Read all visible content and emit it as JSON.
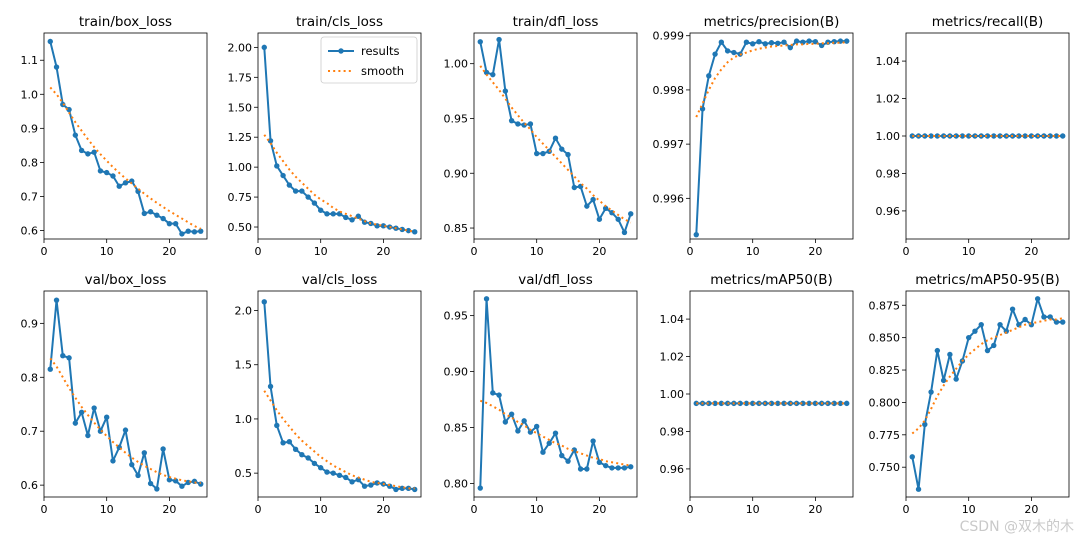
{
  "legend": {
    "results": "results",
    "smooth": "smooth"
  },
  "colors": {
    "results": "#1f77b4",
    "smooth": "#ff7f0e",
    "frame": "#000000"
  },
  "watermark": "CSDN @双木的木",
  "chart_data": [
    {
      "type": "line",
      "title": "train/box_loss",
      "xlim": [
        0,
        26
      ],
      "ylim": [
        0.575,
        1.18
      ],
      "xticks": [
        0,
        10,
        20
      ],
      "yticks": [
        0.6,
        0.7,
        0.8,
        0.9,
        1.0,
        1.1
      ],
      "ydec": 1,
      "legend": false,
      "x": [
        1,
        2,
        3,
        4,
        5,
        6,
        7,
        8,
        9,
        10,
        11,
        12,
        13,
        14,
        15,
        16,
        17,
        18,
        19,
        20,
        21,
        22,
        23,
        24,
        25
      ],
      "series": [
        {
          "name": "results",
          "values": [
            1.155,
            1.08,
            0.97,
            0.955,
            0.88,
            0.835,
            0.825,
            0.83,
            0.775,
            0.77,
            0.76,
            0.73,
            0.74,
            0.745,
            0.715,
            0.65,
            0.655,
            0.645,
            0.635,
            0.62,
            0.62,
            0.59,
            0.598,
            0.596,
            0.598
          ]
        },
        {
          "name": "smooth",
          "values": [
            1.02,
            1.0,
            0.975,
            0.946,
            0.918,
            0.893,
            0.868,
            0.845,
            0.824,
            0.805,
            0.786,
            0.769,
            0.753,
            0.738,
            0.723,
            0.708,
            0.694,
            0.681,
            0.669,
            0.657,
            0.646,
            0.635,
            0.624,
            0.613,
            0.605
          ]
        }
      ]
    },
    {
      "type": "line",
      "title": "train/cls_loss",
      "xlim": [
        0,
        26
      ],
      "ylim": [
        0.4,
        2.12
      ],
      "xticks": [
        0,
        10,
        20
      ],
      "yticks": [
        0.5,
        0.75,
        1.0,
        1.25,
        1.5,
        1.75,
        2.0
      ],
      "ydec": 2,
      "legend": true,
      "x": [
        1,
        2,
        3,
        4,
        5,
        6,
        7,
        8,
        9,
        10,
        11,
        12,
        13,
        14,
        15,
        16,
        17,
        18,
        19,
        20,
        21,
        22,
        23,
        24,
        25
      ],
      "series": [
        {
          "name": "results",
          "values": [
            2.0,
            1.22,
            1.01,
            0.93,
            0.85,
            0.8,
            0.8,
            0.75,
            0.7,
            0.64,
            0.61,
            0.61,
            0.61,
            0.58,
            0.56,
            0.59,
            0.54,
            0.53,
            0.51,
            0.51,
            0.5,
            0.49,
            0.48,
            0.47,
            0.46
          ]
        },
        {
          "name": "smooth",
          "values": [
            1.27,
            1.2,
            1.12,
            1.05,
            0.98,
            0.92,
            0.87,
            0.82,
            0.77,
            0.73,
            0.7,
            0.66,
            0.63,
            0.61,
            0.59,
            0.57,
            0.55,
            0.53,
            0.52,
            0.51,
            0.5,
            0.49,
            0.48,
            0.47,
            0.46
          ]
        }
      ]
    },
    {
      "type": "line",
      "title": "train/dfl_loss",
      "xlim": [
        0,
        26
      ],
      "ylim": [
        0.84,
        1.028
      ],
      "xticks": [
        0,
        10,
        20
      ],
      "yticks": [
        0.85,
        0.9,
        0.95,
        1.0
      ],
      "ydec": 2,
      "legend": false,
      "x": [
        1,
        2,
        3,
        4,
        5,
        6,
        7,
        8,
        9,
        10,
        11,
        12,
        13,
        14,
        15,
        16,
        17,
        18,
        19,
        20,
        21,
        22,
        23,
        24,
        25
      ],
      "series": [
        {
          "name": "results",
          "values": [
            1.02,
            0.992,
            0.99,
            1.022,
            0.975,
            0.948,
            0.945,
            0.944,
            0.945,
            0.918,
            0.918,
            0.92,
            0.932,
            0.922,
            0.917,
            0.887,
            0.888,
            0.87,
            0.876,
            0.858,
            0.868,
            0.864,
            0.858,
            0.846,
            0.863
          ]
        },
        {
          "name": "smooth",
          "values": [
            0.998,
            0.99,
            0.983,
            0.976,
            0.968,
            0.96,
            0.953,
            0.946,
            0.94,
            0.933,
            0.927,
            0.921,
            0.915,
            0.909,
            0.903,
            0.897,
            0.891,
            0.886,
            0.88,
            0.875,
            0.87,
            0.866,
            0.862,
            0.858,
            0.855
          ]
        }
      ]
    },
    {
      "type": "line",
      "title": "metrics/precision(B)",
      "xlim": [
        0,
        26
      ],
      "ylim": [
        0.99525,
        0.99905
      ],
      "xticks": [
        0,
        10,
        20
      ],
      "yticks": [
        0.996,
        0.997,
        0.998,
        0.999
      ],
      "ydec": 3,
      "legend": false,
      "x": [
        1,
        2,
        3,
        4,
        5,
        6,
        7,
        8,
        9,
        10,
        11,
        12,
        13,
        14,
        15,
        16,
        17,
        18,
        19,
        20,
        21,
        22,
        23,
        24,
        25
      ],
      "series": [
        {
          "name": "results",
          "values": [
            0.99533,
            0.99765,
            0.99826,
            0.99866,
            0.99888,
            0.99872,
            0.99869,
            0.99866,
            0.99888,
            0.99885,
            0.99889,
            0.99885,
            0.99887,
            0.99886,
            0.99888,
            0.99878,
            0.9989,
            0.99888,
            0.9989,
            0.99889,
            0.99882,
            0.99888,
            0.99889,
            0.9989,
            0.9989
          ]
        },
        {
          "name": "smooth",
          "values": [
            0.9975,
            0.99775,
            0.998,
            0.99822,
            0.99838,
            0.99851,
            0.9986,
            0.99865,
            0.99869,
            0.99873,
            0.99876,
            0.99878,
            0.9988,
            0.99881,
            0.99882,
            0.99883,
            0.99884,
            0.99884,
            0.99885,
            0.99885,
            0.99886,
            0.99886,
            0.99887,
            0.99887,
            0.99888
          ]
        }
      ]
    },
    {
      "type": "line",
      "title": "metrics/recall(B)",
      "xlim": [
        0,
        26
      ],
      "ylim": [
        0.945,
        1.055
      ],
      "xticks": [
        0,
        10,
        20
      ],
      "yticks": [
        0.96,
        0.98,
        1.0,
        1.02,
        1.04
      ],
      "ydec": 2,
      "legend": false,
      "x": [
        1,
        2,
        3,
        4,
        5,
        6,
        7,
        8,
        9,
        10,
        11,
        12,
        13,
        14,
        15,
        16,
        17,
        18,
        19,
        20,
        21,
        22,
        23,
        24,
        25
      ],
      "series": [
        {
          "name": "results",
          "values": [
            1,
            1,
            1,
            1,
            1,
            1,
            1,
            1,
            1,
            1,
            1,
            1,
            1,
            1,
            1,
            1,
            1,
            1,
            1,
            1,
            1,
            1,
            1,
            1,
            1
          ]
        },
        {
          "name": "smooth",
          "values": [
            1,
            1,
            1,
            1,
            1,
            1,
            1,
            1,
            1,
            1,
            1,
            1,
            1,
            1,
            1,
            1,
            1,
            1,
            1,
            1,
            1,
            1,
            1,
            1,
            1
          ]
        }
      ]
    },
    {
      "type": "line",
      "title": "val/box_loss",
      "xlim": [
        0,
        26
      ],
      "ylim": [
        0.578,
        0.96
      ],
      "xticks": [
        0,
        10,
        20
      ],
      "yticks": [
        0.6,
        0.7,
        0.8,
        0.9
      ],
      "ydec": 1,
      "legend": false,
      "x": [
        1,
        2,
        3,
        4,
        5,
        6,
        7,
        8,
        9,
        10,
        11,
        12,
        13,
        14,
        15,
        16,
        17,
        18,
        19,
        20,
        21,
        22,
        23,
        24,
        25
      ],
      "series": [
        {
          "name": "results",
          "values": [
            0.815,
            0.943,
            0.84,
            0.836,
            0.715,
            0.735,
            0.692,
            0.743,
            0.7,
            0.726,
            0.645,
            0.67,
            0.702,
            0.638,
            0.618,
            0.66,
            0.603,
            0.593,
            0.667,
            0.61,
            0.608,
            0.598,
            0.605,
            0.607,
            0.602
          ]
        },
        {
          "name": "smooth",
          "values": [
            0.835,
            0.82,
            0.8,
            0.78,
            0.762,
            0.745,
            0.73,
            0.716,
            0.703,
            0.691,
            0.68,
            0.67,
            0.66,
            0.651,
            0.643,
            0.636,
            0.63,
            0.624,
            0.619,
            0.615,
            0.612,
            0.609,
            0.607,
            0.605,
            0.604
          ]
        }
      ]
    },
    {
      "type": "line",
      "title": "val/cls_loss",
      "xlim": [
        0,
        26
      ],
      "ylim": [
        0.28,
        2.18
      ],
      "xticks": [
        0,
        10,
        20
      ],
      "yticks": [
        0.5,
        1.0,
        1.5,
        2.0
      ],
      "ydec": 1,
      "legend": false,
      "x": [
        1,
        2,
        3,
        4,
        5,
        6,
        7,
        8,
        9,
        10,
        11,
        12,
        13,
        14,
        15,
        16,
        17,
        18,
        19,
        20,
        21,
        22,
        23,
        24,
        25
      ],
      "series": [
        {
          "name": "results",
          "values": [
            2.08,
            1.3,
            0.94,
            0.78,
            0.79,
            0.72,
            0.67,
            0.64,
            0.59,
            0.55,
            0.51,
            0.5,
            0.48,
            0.46,
            0.42,
            0.44,
            0.38,
            0.39,
            0.41,
            0.4,
            0.38,
            0.35,
            0.36,
            0.36,
            0.35
          ]
        },
        {
          "name": "smooth",
          "values": [
            1.26,
            1.17,
            1.08,
            1.0,
            0.93,
            0.86,
            0.8,
            0.75,
            0.7,
            0.65,
            0.61,
            0.57,
            0.54,
            0.51,
            0.48,
            0.46,
            0.44,
            0.42,
            0.41,
            0.4,
            0.39,
            0.38,
            0.37,
            0.36,
            0.36
          ]
        }
      ]
    },
    {
      "type": "line",
      "title": "val/dfl_loss",
      "xlim": [
        0,
        26
      ],
      "ylim": [
        0.788,
        0.972
      ],
      "xticks": [
        0,
        10,
        20
      ],
      "yticks": [
        0.8,
        0.85,
        0.9,
        0.95
      ],
      "ydec": 2,
      "legend": false,
      "x": [
        1,
        2,
        3,
        4,
        5,
        6,
        7,
        8,
        9,
        10,
        11,
        12,
        13,
        14,
        15,
        16,
        17,
        18,
        19,
        20,
        21,
        22,
        23,
        24,
        25
      ],
      "series": [
        {
          "name": "results",
          "values": [
            0.796,
            0.965,
            0.881,
            0.879,
            0.855,
            0.862,
            0.847,
            0.856,
            0.846,
            0.851,
            0.828,
            0.836,
            0.845,
            0.825,
            0.82,
            0.83,
            0.813,
            0.813,
            0.838,
            0.819,
            0.816,
            0.814,
            0.814,
            0.814,
            0.815
          ]
        },
        {
          "name": "smooth",
          "values": [
            0.874,
            0.872,
            0.869,
            0.866,
            0.862,
            0.859,
            0.855,
            0.852,
            0.848,
            0.845,
            0.842,
            0.839,
            0.836,
            0.834,
            0.831,
            0.829,
            0.827,
            0.825,
            0.823,
            0.822,
            0.82,
            0.819,
            0.818,
            0.817,
            0.816
          ]
        }
      ]
    },
    {
      "type": "line",
      "title": "metrics/mAP50(B)",
      "xlim": [
        0,
        26
      ],
      "ylim": [
        0.945,
        1.055
      ],
      "xticks": [
        0,
        10,
        20
      ],
      "yticks": [
        0.96,
        0.98,
        1.0,
        1.02,
        1.04
      ],
      "ydec": 2,
      "legend": false,
      "x": [
        1,
        2,
        3,
        4,
        5,
        6,
        7,
        8,
        9,
        10,
        11,
        12,
        13,
        14,
        15,
        16,
        17,
        18,
        19,
        20,
        21,
        22,
        23,
        24,
        25
      ],
      "series": [
        {
          "name": "results",
          "values": [
            0.995,
            0.995,
            0.995,
            0.995,
            0.995,
            0.995,
            0.995,
            0.995,
            0.995,
            0.995,
            0.995,
            0.995,
            0.995,
            0.995,
            0.995,
            0.995,
            0.995,
            0.995,
            0.995,
            0.995,
            0.995,
            0.995,
            0.995,
            0.995,
            0.995
          ]
        },
        {
          "name": "smooth",
          "values": [
            0.995,
            0.995,
            0.995,
            0.995,
            0.995,
            0.995,
            0.995,
            0.995,
            0.995,
            0.995,
            0.995,
            0.995,
            0.995,
            0.995,
            0.995,
            0.995,
            0.995,
            0.995,
            0.995,
            0.995,
            0.995,
            0.995,
            0.995,
            0.995,
            0.995
          ]
        }
      ]
    },
    {
      "type": "line",
      "title": "metrics/mAP50-95(B)",
      "xlim": [
        0,
        26
      ],
      "ylim": [
        0.727,
        0.886
      ],
      "xticks": [
        0,
        10,
        20
      ],
      "yticks": [
        0.75,
        0.775,
        0.8,
        0.825,
        0.85,
        0.875
      ],
      "ydec": 3,
      "legend": false,
      "x": [
        1,
        2,
        3,
        4,
        5,
        6,
        7,
        8,
        9,
        10,
        11,
        12,
        13,
        14,
        15,
        16,
        17,
        18,
        19,
        20,
        21,
        22,
        23,
        24,
        25
      ],
      "series": [
        {
          "name": "results",
          "values": [
            0.758,
            0.733,
            0.783,
            0.808,
            0.84,
            0.817,
            0.837,
            0.818,
            0.832,
            0.85,
            0.855,
            0.86,
            0.84,
            0.844,
            0.86,
            0.855,
            0.872,
            0.86,
            0.864,
            0.86,
            0.88,
            0.866,
            0.866,
            0.862,
            0.862
          ]
        },
        {
          "name": "smooth",
          "values": [
            0.776,
            0.78,
            0.786,
            0.795,
            0.805,
            0.813,
            0.82,
            0.826,
            0.832,
            0.837,
            0.841,
            0.845,
            0.848,
            0.85,
            0.852,
            0.854,
            0.856,
            0.858,
            0.86,
            0.861,
            0.862,
            0.863,
            0.864,
            0.864,
            0.865
          ]
        }
      ]
    }
  ]
}
